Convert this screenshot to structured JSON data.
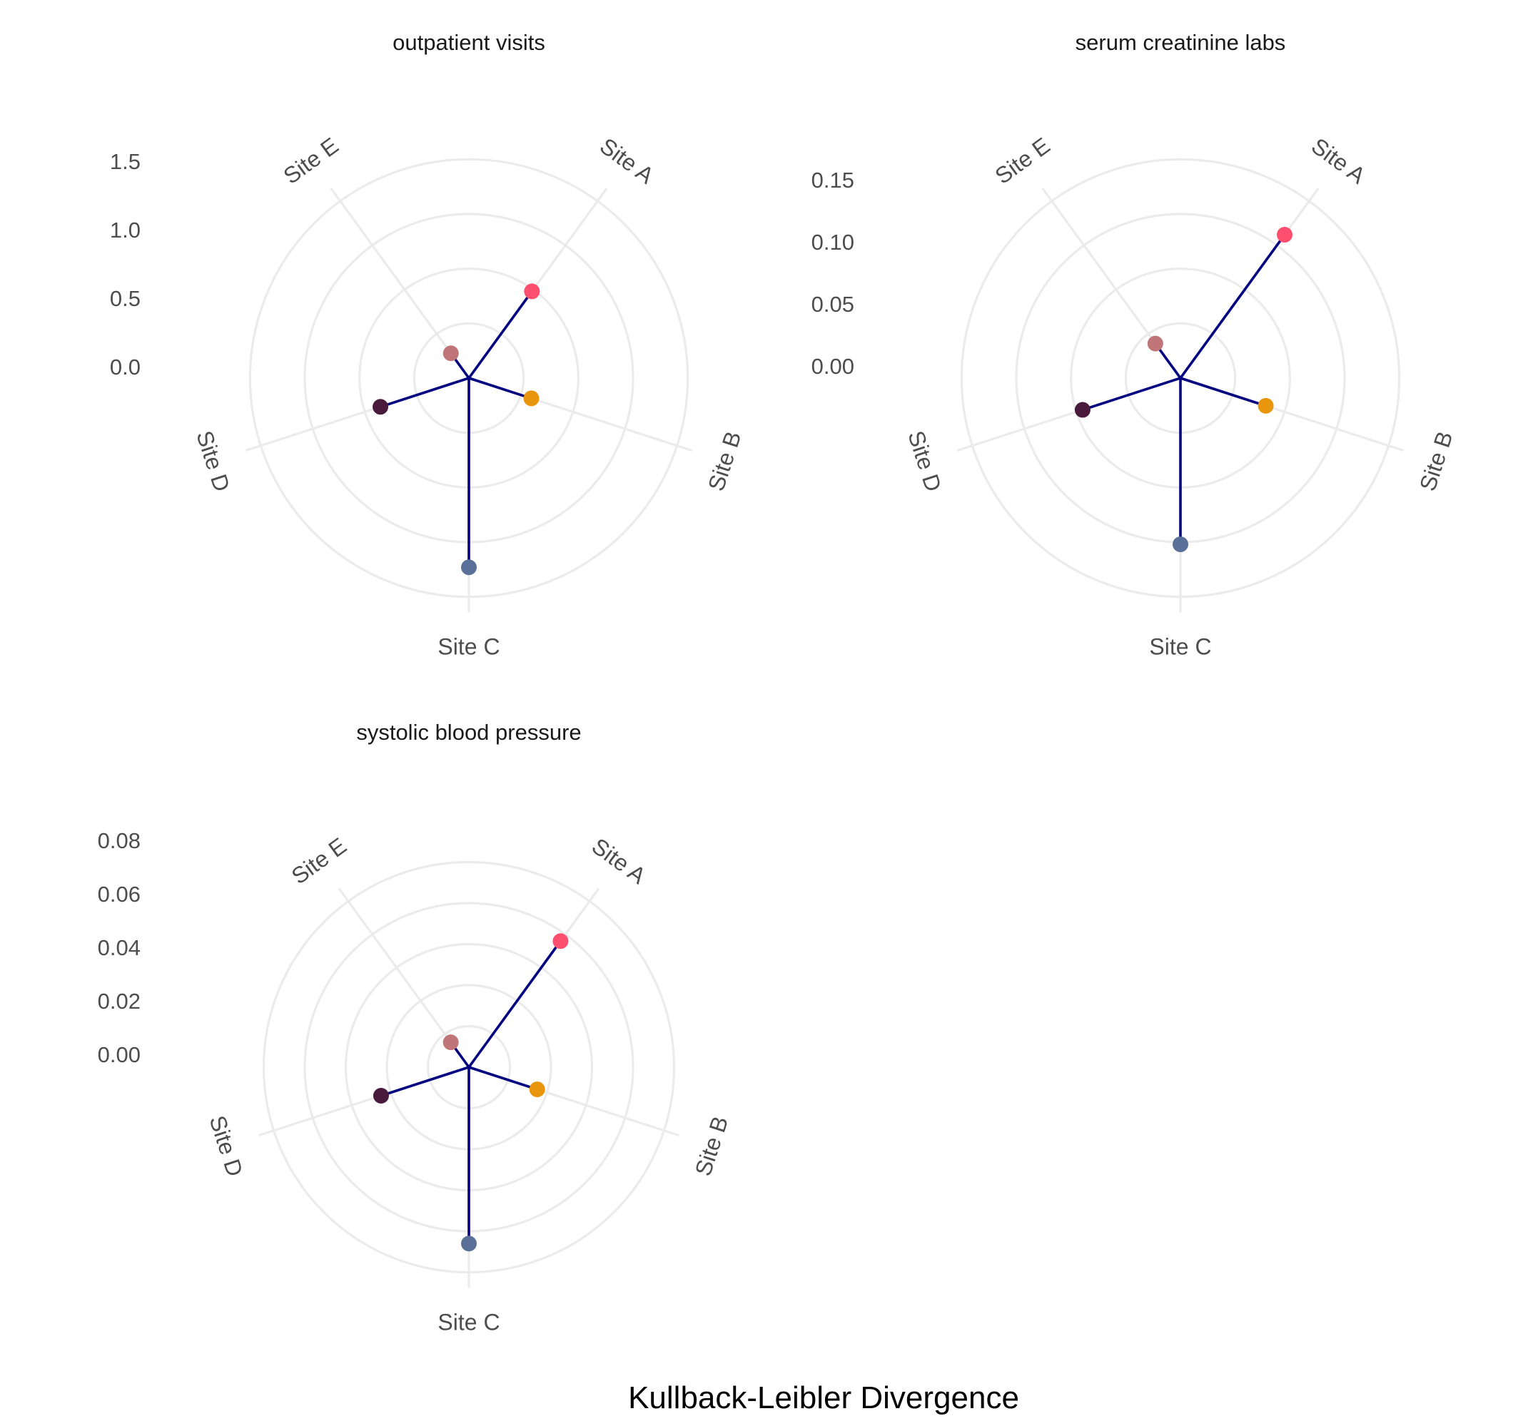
{
  "chart_data": {
    "type": "polar-lollipop",
    "xlabel": "Kullback-Leibler Divergence",
    "categories": [
      "Site A",
      "Site B",
      "Site C",
      "Site D",
      "Site E"
    ],
    "point_colors": {
      "Site A": "#FF4F6E",
      "Site B": "#E8960E",
      "Site C": "#5B7098",
      "Site D": "#4A1A3C",
      "Site E": "#C07578"
    },
    "stem_color": "#000080",
    "grid_color": "#EBEBEB",
    "panels": [
      {
        "title": "outpatient visits",
        "ticks": [
          "0.0",
          "0.5",
          "1.0",
          "1.5"
        ],
        "tick_values": [
          0,
          0.5,
          1.0,
          1.5
        ],
        "ylim": [
          0,
          1.5
        ],
        "values": [
          0.98,
          0.6,
          1.73,
          0.85,
          0.28
        ]
      },
      {
        "title": "serum creatinine labs",
        "ticks": [
          "0.00",
          "0.05",
          "0.10",
          "0.15"
        ],
        "tick_values": [
          0,
          0.05,
          0.1,
          0.15
        ],
        "ylim": [
          0,
          0.15
        ],
        "values": [
          0.162,
          0.082,
          0.152,
          0.094,
          0.039
        ]
      },
      {
        "title": "systolic blood pressure",
        "ticks": [
          "0.00",
          "0.02",
          "0.04",
          "0.06",
          "0.08"
        ],
        "tick_values": [
          0,
          0.02,
          0.04,
          0.06,
          0.08
        ],
        "ylim": [
          0,
          0.08
        ],
        "values": [
          0.076,
          0.035,
          0.086,
          0.045,
          0.015
        ]
      }
    ]
  }
}
